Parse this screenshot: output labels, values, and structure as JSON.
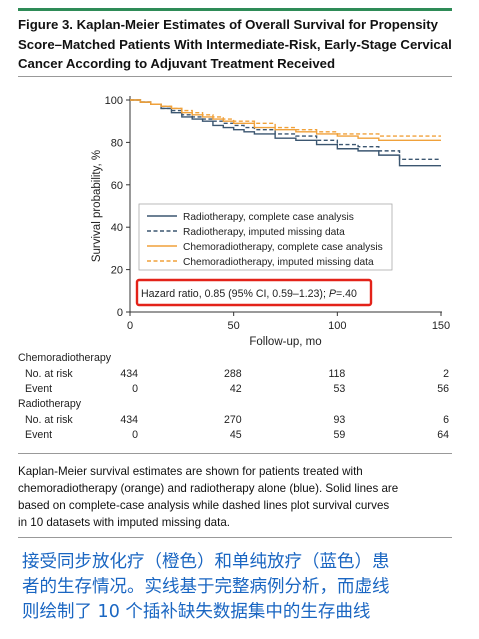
{
  "figure": {
    "title": "Figure 3. Kaplan-Meier Estimates of Overall Survival for Propensity Score–Matched Patients With Intermediate-Risk, Early-Stage Cervical Cancer According to Adjuvant Treatment Received",
    "title_lines": [
      "Figure 3. Kaplan-Meier Estimates of Overall Survival for Propensity",
      "Score–Matched Patients With Intermediate-Risk, Early-Stage Cervical",
      "Cancer According to Adjuvant Treatment Received"
    ],
    "caption": "Kaplan-Meier survival estimates are shown for patients treated with chemoradiotherapy (orange) and radiotherapy alone (blue). Solid lines are based on complete-case analysis while dashed lines plot survival curves in 10 datasets with imputed missing data.",
    "caption_lines": [
      "Kaplan-Meier survival estimates are shown for patients treated with",
      "chemoradiotherapy (orange) and radiotherapy alone (blue). Solid lines are",
      "based on complete-case analysis while dashed lines plot survival curves",
      "in 10 datasets with imputed missing data."
    ],
    "chinese_note_lines": [
      "接受同步放化疗（橙色）和单纯放疗（蓝色）患",
      "者的生存情况。实线基于完整病例分析，而虚线",
      "则绘制了 10 个插补缺失数据集中的生存曲线"
    ]
  },
  "chart_data": {
    "type": "line",
    "xlabel": "Follow-up, mo",
    "ylabel": "Survival probability, %",
    "xlim": [
      0,
      150
    ],
    "ylim": [
      0,
      100
    ],
    "xticks": [
      0,
      50,
      100,
      150
    ],
    "yticks": [
      0,
      20,
      40,
      60,
      80,
      100
    ],
    "grid": false,
    "legend_position": "bottom-left",
    "series": [
      {
        "name": "Radiotherapy, complete case analysis",
        "color": "#3b5670",
        "style": "solid",
        "step": true,
        "x": [
          0,
          5,
          10,
          15,
          20,
          25,
          30,
          35,
          40,
          45,
          50,
          55,
          60,
          70,
          80,
          90,
          100,
          110,
          120,
          130,
          150
        ],
        "y": [
          100,
          99,
          98,
          96,
          94,
          92,
          91,
          90,
          88,
          87,
          86,
          85,
          84,
          82,
          81,
          79,
          77,
          76,
          74,
          69,
          69
        ]
      },
      {
        "name": "Radiotherapy, imputed missing data",
        "color": "#3b5670",
        "style": "dashed",
        "step": true,
        "x": [
          0,
          5,
          10,
          15,
          20,
          25,
          30,
          35,
          40,
          45,
          50,
          55,
          60,
          70,
          80,
          90,
          100,
          110,
          120,
          130,
          150
        ],
        "y": [
          100,
          99,
          98,
          96,
          95,
          93,
          92,
          91,
          90,
          89,
          88,
          87,
          86,
          84,
          83,
          81,
          79,
          78,
          76,
          72,
          72
        ]
      },
      {
        "name": "Chemoradiotherapy, complete case analysis",
        "color": "#f0a13a",
        "style": "solid",
        "step": true,
        "x": [
          0,
          5,
          10,
          15,
          20,
          25,
          30,
          35,
          40,
          45,
          50,
          60,
          70,
          80,
          90,
          100,
          110,
          120,
          150
        ],
        "y": [
          100,
          99,
          98,
          97,
          96,
          94,
          93,
          92,
          91,
          90,
          89,
          87,
          86,
          85,
          84,
          83,
          82,
          81,
          81
        ]
      },
      {
        "name": "Chemoradiotherapy, imputed missing data",
        "color": "#f0a13a",
        "style": "dashed",
        "step": true,
        "x": [
          0,
          5,
          10,
          15,
          20,
          25,
          30,
          35,
          40,
          45,
          50,
          60,
          70,
          80,
          90,
          100,
          110,
          120,
          150
        ],
        "y": [
          100,
          99,
          98,
          97,
          96,
          95,
          94,
          93,
          92,
          91,
          90,
          89,
          87,
          86,
          85,
          84,
          84,
          83,
          83
        ]
      }
    ],
    "annotation": {
      "text": "Hazard ratio, 0.85 (95% CI, 0.59–1.23); P=.40",
      "text_pre": "Hazard ratio, 0.85 (95% CI, 0.59–1.23); ",
      "text_p": "P",
      "text_post": "=.40",
      "box_color": "#e32219"
    },
    "risk_table": {
      "time_points": [
        0,
        50,
        100,
        150
      ],
      "groups": [
        {
          "name": "Chemoradiotherapy",
          "rows": [
            {
              "label": "No. at risk",
              "values": [
                434,
                288,
                118,
                2
              ]
            },
            {
              "label": "Event",
              "values": [
                0,
                42,
                53,
                56
              ]
            }
          ]
        },
        {
          "name": "Radiotherapy",
          "rows": [
            {
              "label": "No. at risk",
              "values": [
                434,
                270,
                93,
                6
              ]
            },
            {
              "label": "Event",
              "values": [
                0,
                45,
                59,
                64
              ]
            }
          ]
        }
      ]
    }
  }
}
